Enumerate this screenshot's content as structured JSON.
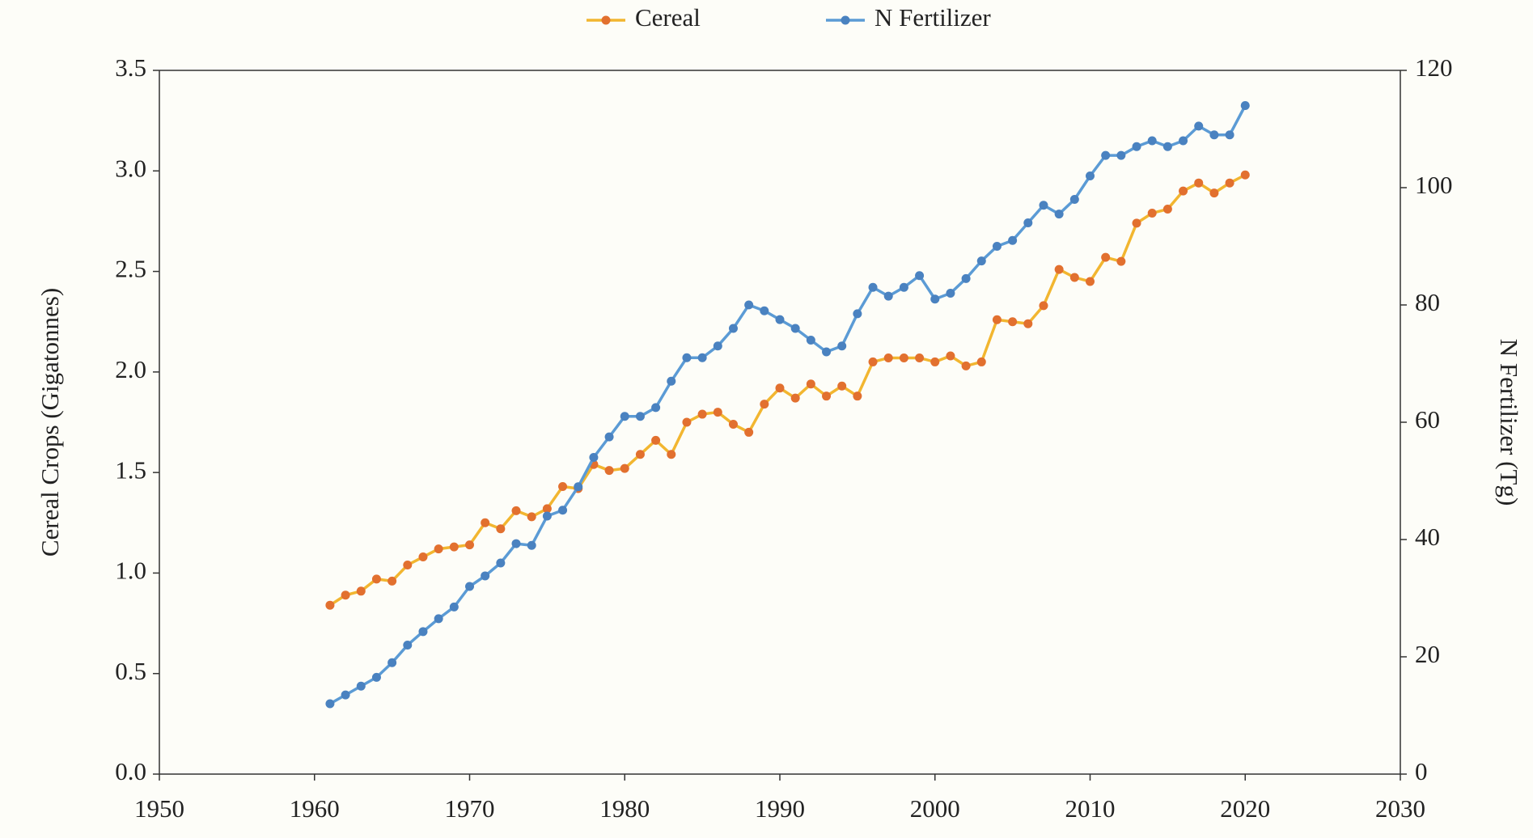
{
  "chart_data": {
    "type": "line",
    "x_label": "",
    "y_label": "Cereal Crops (Gigatonnes)",
    "y2_label": "N Fertilizer (Tg)",
    "x": [
      1961,
      1962,
      1963,
      1964,
      1965,
      1966,
      1967,
      1968,
      1969,
      1970,
      1971,
      1972,
      1973,
      1974,
      1975,
      1976,
      1977,
      1978,
      1979,
      1980,
      1981,
      1982,
      1983,
      1984,
      1985,
      1986,
      1987,
      1988,
      1989,
      1990,
      1991,
      1992,
      1993,
      1994,
      1995,
      1996,
      1997,
      1998,
      1999,
      2000,
      2001,
      2002,
      2003,
      2004,
      2005,
      2006,
      2007,
      2008,
      2009,
      2010,
      2011,
      2012,
      2013,
      2014,
      2015,
      2016,
      2017,
      2018,
      2019,
      2020
    ],
    "series": [
      {
        "name": "Cereal",
        "color": "#f2b630",
        "marker_color": "#e2702f",
        "values": [
          0.84,
          0.89,
          0.91,
          0.97,
          0.96,
          1.04,
          1.08,
          1.12,
          1.13,
          1.14,
          1.25,
          1.22,
          1.31,
          1.28,
          1.32,
          1.43,
          1.42,
          1.54,
          1.51,
          1.52,
          1.59,
          1.66,
          1.59,
          1.75,
          1.79,
          1.8,
          1.74,
          1.7,
          1.84,
          1.92,
          1.87,
          1.94,
          1.88,
          1.93,
          1.88,
          2.05,
          2.07,
          2.07,
          2.07,
          2.05,
          2.08,
          2.03,
          2.05,
          2.26,
          2.25,
          2.24,
          2.33,
          2.51,
          2.47,
          2.45,
          2.57,
          2.55,
          2.74,
          2.79,
          2.81,
          2.9,
          2.94,
          2.89,
          2.94,
          2.98
        ]
      },
      {
        "name": "N Fertilizer",
        "color": "#5b9bd5",
        "marker_color": "#4a82c0",
        "axis": "y2",
        "values": [
          12,
          13.5,
          15,
          16.5,
          19,
          22,
          24.3,
          26.5,
          28.5,
          32,
          33.8,
          36,
          39.3,
          39,
          44,
          45,
          49,
          54,
          57.5,
          61,
          61,
          62.5,
          67,
          71,
          71,
          73,
          76,
          80,
          79,
          77.5,
          76,
          74,
          72,
          73,
          78.5,
          83,
          81.5,
          83,
          85,
          81,
          82,
          84.5,
          87.5,
          90,
          91,
          94,
          97,
          95.5,
          98,
          102,
          105.5,
          105.5,
          107,
          108,
          107,
          108,
          110.5,
          109,
          109,
          114
        ]
      }
    ],
    "xlim": [
      1950,
      2030
    ],
    "xticks": [
      1950,
      1960,
      1970,
      1980,
      1990,
      2000,
      2010,
      2020,
      2030
    ],
    "ylim": [
      0,
      3.5
    ],
    "yticks": [
      {
        "value": 0,
        "label": "0.0"
      },
      0.5,
      {
        "value": 1,
        "label": "1.0"
      },
      1.5,
      {
        "value": 2,
        "label": "2.0"
      },
      2.5,
      {
        "value": 3,
        "label": "3.0"
      },
      3.5
    ],
    "y2lim": [
      0,
      120
    ],
    "y2ticks": [
      0,
      20,
      40,
      60,
      80,
      100,
      120
    ],
    "legend": "top"
  }
}
